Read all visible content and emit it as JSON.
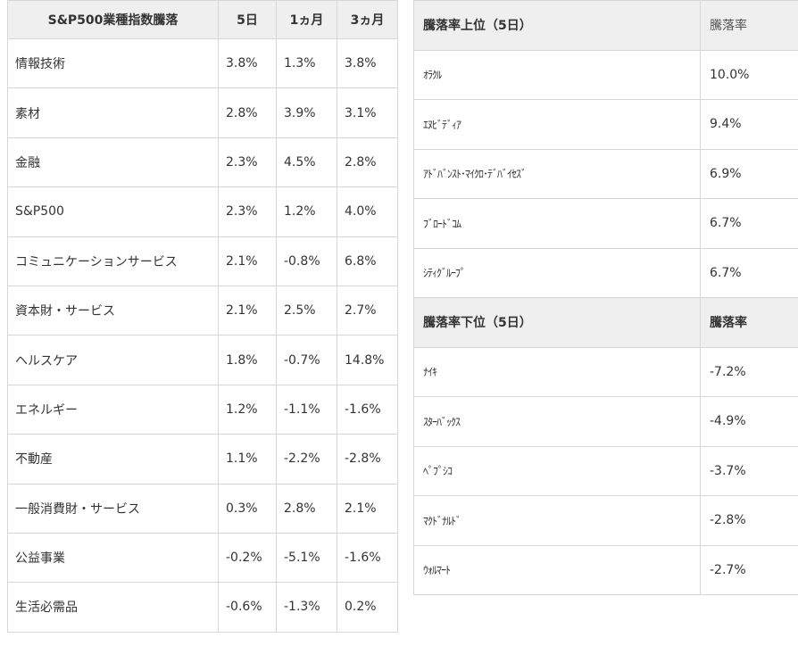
{
  "sector_table": {
    "headers": [
      "S&P500業種指数騰落",
      "5日",
      "1ヵ月",
      "3ヵ月"
    ],
    "rows": [
      [
        "情報技術",
        "3.8%",
        "1.3%",
        "3.8%"
      ],
      [
        "素材",
        "2.8%",
        "3.9%",
        "3.1%"
      ],
      [
        "金融",
        "2.3%",
        "4.5%",
        "2.8%"
      ],
      [
        "S&P500",
        "2.3%",
        "1.2%",
        "4.0%"
      ],
      [
        "コミュニケーションサービス",
        "2.1%",
        "-0.8%",
        "6.8%"
      ],
      [
        "資本財・サービス",
        "2.1%",
        "2.5%",
        "2.7%"
      ],
      [
        "ヘルスケア",
        "1.8%",
        "-0.7%",
        "14.8%"
      ],
      [
        "エネルギー",
        "1.2%",
        "-1.1%",
        "-1.6%"
      ],
      [
        "不動産",
        "1.1%",
        "-2.2%",
        "-2.8%"
      ],
      [
        "一般消費財・サービス",
        "0.3%",
        "2.8%",
        "2.1%"
      ],
      [
        "公益事業",
        "-0.2%",
        "-5.1%",
        "-1.6%"
      ],
      [
        "生活必需品",
        "-0.6%",
        "-1.3%",
        "0.2%"
      ]
    ]
  },
  "top_table": {
    "headers": [
      "騰落率上位（5日）",
      "騰落率"
    ],
    "rows": [
      [
        "ｵﾗｸﾙ",
        "10.0%"
      ],
      [
        "ｴﾇﾋﾞﾃﾞｨｱ",
        "9.4%"
      ],
      [
        "ｱﾄﾞﾊﾞﾝｽﾄ･ﾏｲｸﾛ･ﾃﾞﾊﾞｲｾｽﾞ",
        "6.9%"
      ],
      [
        "ﾌﾞﾛｰﾄﾞｺﾑ",
        "6.7%"
      ],
      [
        "ｼﾃｨｸﾞﾙｰﾌﾟ",
        "6.7%"
      ]
    ]
  },
  "bottom_table": {
    "headers": [
      "騰落率下位（5日）",
      "騰落率"
    ],
    "rows": [
      [
        "ﾅｲｷ",
        "-7.2%"
      ],
      [
        "ｽﾀｰﾊﾞｯｸｽ",
        "-4.9%"
      ],
      [
        "ﾍﾟﾌﾟｼｺ",
        "-3.7%"
      ],
      [
        "ﾏｸﾄﾞﾅﾙﾄﾞ",
        "-2.8%"
      ],
      [
        "ｳｫﾙﾏｰﾄ",
        "-2.7%"
      ]
    ]
  }
}
